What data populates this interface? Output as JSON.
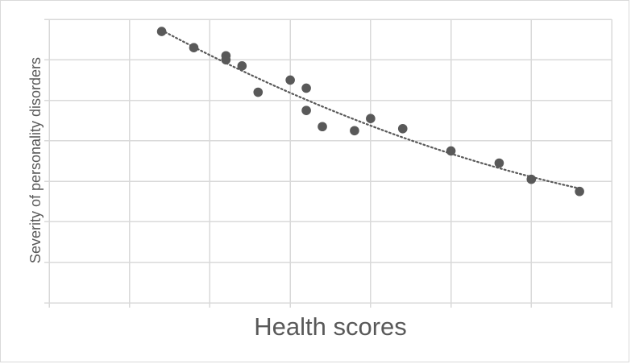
{
  "chart_data": {
    "type": "scatter",
    "title": "",
    "xlabel": "Health scores",
    "ylabel": "Severity of personality disorders",
    "xlim": [
      0,
      7
    ],
    "ylim": [
      0,
      7
    ],
    "x_tick_labels_visible": false,
    "y_tick_labels_visible": false,
    "grid": true,
    "legend": "none",
    "trendline": {
      "type": "polynomial",
      "style": "dotted",
      "color": "#595959"
    },
    "series": [
      {
        "points": [
          {
            "x": 1.4,
            "y": 6.7
          },
          {
            "x": 1.8,
            "y": 6.3
          },
          {
            "x": 2.2,
            "y": 6.1
          },
          {
            "x": 2.2,
            "y": 6.0
          },
          {
            "x": 2.4,
            "y": 5.85
          },
          {
            "x": 2.6,
            "y": 5.2
          },
          {
            "x": 3.0,
            "y": 5.5
          },
          {
            "x": 3.2,
            "y": 5.3
          },
          {
            "x": 3.2,
            "y": 4.75
          },
          {
            "x": 3.4,
            "y": 4.35
          },
          {
            "x": 3.8,
            "y": 4.25
          },
          {
            "x": 4.0,
            "y": 4.55
          },
          {
            "x": 4.4,
            "y": 4.3
          },
          {
            "x": 5.0,
            "y": 3.75
          },
          {
            "x": 5.6,
            "y": 3.45
          },
          {
            "x": 6.0,
            "y": 3.05
          },
          {
            "x": 6.6,
            "y": 2.75
          }
        ],
        "color": "#595959"
      }
    ]
  }
}
